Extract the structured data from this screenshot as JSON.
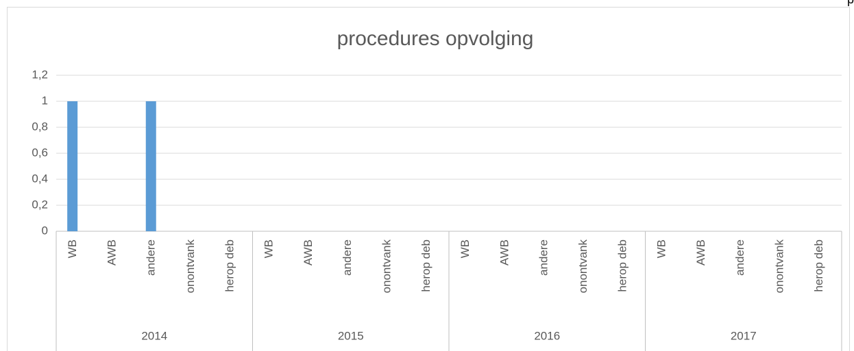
{
  "chart_data": {
    "type": "bar",
    "title": "procedures opvolging",
    "corner_text": "p",
    "color": "#5b9bd5",
    "grid": true,
    "ylim": [
      0,
      1.2
    ],
    "yticks": [
      0,
      {
        "value": 0.2,
        "label": "0,2"
      },
      {
        "value": 0.4,
        "label": "0,4"
      },
      {
        "value": 0.6,
        "label": "0,6"
      },
      {
        "value": 0.8,
        "label": "0,8"
      },
      1,
      {
        "value": 1.2,
        "label": "1,2"
      }
    ],
    "groups": [
      {
        "label": "2014",
        "categories": [
          "WB",
          "AWB",
          "andere",
          "onontvank",
          "herop deb"
        ],
        "values": [
          1,
          0,
          1,
          0,
          0
        ]
      },
      {
        "label": "2015",
        "categories": [
          "WB",
          "AWB",
          "andere",
          "onontvank",
          "herop deb"
        ],
        "values": [
          0,
          0,
          0,
          0,
          0
        ]
      },
      {
        "label": "2016",
        "categories": [
          "WB",
          "AWB",
          "andere",
          "onontvank",
          "herop deb"
        ],
        "values": [
          0,
          0,
          0,
          0,
          0
        ]
      },
      {
        "label": "2017",
        "categories": [
          "WB",
          "AWB",
          "andere",
          "onontvank",
          "herop deb"
        ],
        "values": [
          0,
          0,
          0,
          0,
          0
        ]
      }
    ]
  }
}
